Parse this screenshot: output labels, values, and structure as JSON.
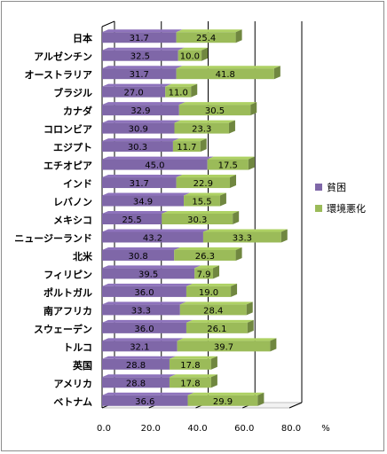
{
  "chart_data": {
    "type": "bar",
    "orientation": "horizontal",
    "stacked": true,
    "style": "3d",
    "categories": [
      "日本",
      "アルゼンチン",
      "オーストラリア",
      "ブラジル",
      "カナダ",
      "コロンビア",
      "エジプト",
      "エチオピア",
      "インド",
      "レバノン",
      "メキシコ",
      "ニュージーランド",
      "北米",
      "フィリピン",
      "ポルトガル",
      "南アフリカ",
      "スウェーデン",
      "トルコ",
      "英国",
      "アメリカ",
      "ベトナム"
    ],
    "series": [
      {
        "name": "貧困",
        "color": "#7F67A8",
        "values": [
          31.7,
          32.5,
          31.7,
          27.0,
          32.9,
          30.9,
          30.3,
          45.0,
          31.7,
          34.9,
          25.5,
          43.2,
          30.8,
          39.5,
          36.0,
          33.3,
          36.0,
          32.1,
          28.8,
          28.8,
          36.6
        ]
      },
      {
        "name": "環境悪化",
        "color": "#9BBB59",
        "values": [
          25.4,
          10.0,
          41.8,
          11.0,
          30.5,
          23.3,
          11.7,
          17.5,
          22.9,
          15.5,
          30.3,
          33.3,
          26.3,
          7.9,
          19.0,
          28.4,
          26.1,
          39.7,
          17.8,
          17.8,
          29.9
        ]
      }
    ],
    "xlim": [
      0,
      80
    ],
    "xticks": [
      "0.0",
      "20.0",
      "40.0",
      "60.0",
      "80.0"
    ],
    "xunit": "%",
    "grid": "vertical",
    "legend": "right"
  }
}
